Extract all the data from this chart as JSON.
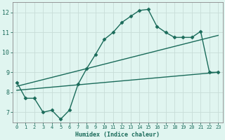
{
  "xlabel": "Humidex (Indice chaleur)",
  "ylabel": "",
  "xlim": [
    -0.5,
    23.5
  ],
  "ylim": [
    6.5,
    12.5
  ],
  "xticks": [
    0,
    1,
    2,
    3,
    4,
    5,
    6,
    7,
    8,
    9,
    10,
    11,
    12,
    13,
    14,
    15,
    16,
    17,
    18,
    19,
    20,
    21,
    22,
    23
  ],
  "yticks": [
    7,
    8,
    9,
    10,
    11,
    12
  ],
  "background_color": "#e0f5f0",
  "grid_color": "#c8ddd8",
  "line_color": "#1a6b5a",
  "line1_x": [
    0,
    1,
    2,
    3,
    4,
    5,
    6,
    7,
    8,
    9,
    10,
    11,
    12,
    13,
    14,
    15,
    16,
    17,
    18,
    19,
    20,
    21,
    22,
    23
  ],
  "line1_y": [
    8.5,
    7.7,
    7.7,
    7.0,
    7.1,
    6.65,
    7.1,
    8.4,
    9.2,
    9.9,
    10.65,
    11.0,
    11.5,
    11.8,
    12.1,
    12.15,
    11.3,
    11.0,
    10.75,
    10.75,
    10.75,
    11.05,
    9.0,
    9.0
  ],
  "line2_x": [
    0,
    23
  ],
  "line2_y": [
    8.1,
    9.0
  ],
  "line3_x": [
    0,
    23
  ],
  "line3_y": [
    8.3,
    10.85
  ],
  "marker": "D",
  "markersize": 2.5,
  "linewidth": 1.0
}
